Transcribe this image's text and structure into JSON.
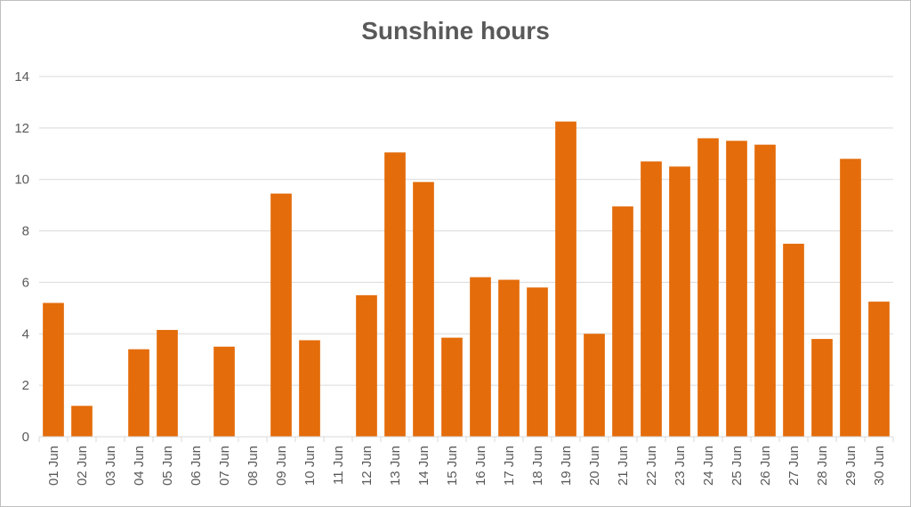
{
  "chart_data": {
    "type": "bar",
    "title": "Sunshine hours",
    "xlabel": "",
    "ylabel": "",
    "ylim": [
      0,
      14
    ],
    "yticks": [
      "0",
      "2",
      "4",
      "6",
      "8",
      "10",
      "12",
      "14"
    ],
    "grid": true,
    "legend": "none",
    "bar_color": "#e46c0a",
    "categories": [
      "01 Jun",
      "02 Jun",
      "03 Jun",
      "04 Jun",
      "05 Jun",
      "06 Jun",
      "07 Jun",
      "08 Jun",
      "09 Jun",
      "10 Jun",
      "11 Jun",
      "12 Jun",
      "13 Jun",
      "14 Jun",
      "15 Jun",
      "16 Jun",
      "17 Jun",
      "18 Jun",
      "19 Jun",
      "20 Jun",
      "21 Jun",
      "22 Jun",
      "23 Jun",
      "24 Jun",
      "25 Jun",
      "26 Jun",
      "27 Jun",
      "28 Jun",
      "29 Jun",
      "30 Jun"
    ],
    "values": [
      5.2,
      1.2,
      0,
      3.4,
      4.15,
      0,
      3.5,
      0,
      9.45,
      3.75,
      0,
      5.5,
      11.05,
      9.9,
      3.85,
      6.2,
      6.1,
      5.8,
      12.25,
      4.0,
      8.95,
      10.7,
      10.5,
      11.6,
      11.5,
      11.35,
      7.5,
      3.8,
      10.8,
      5.25
    ]
  }
}
